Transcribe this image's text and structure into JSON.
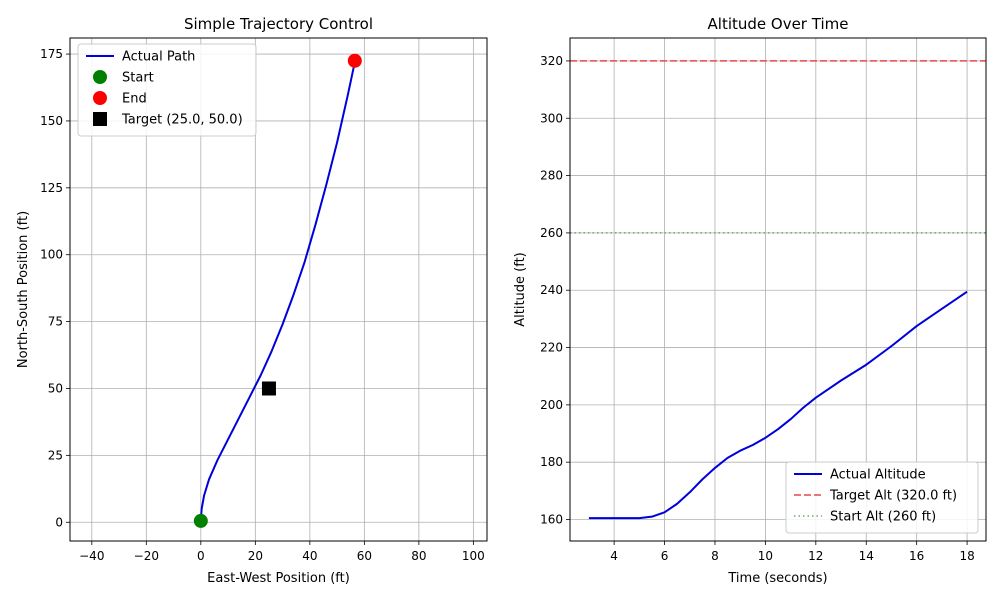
{
  "chart_data": [
    {
      "type": "line",
      "title": "Simple Trajectory Control",
      "xlabel": "East-West Position (ft)",
      "ylabel": "North-South Position (ft)",
      "xlim": [
        -48,
        105
      ],
      "ylim": [
        -7,
        181
      ],
      "xticks": [
        -40,
        -20,
        0,
        20,
        40,
        60,
        80,
        100
      ],
      "yticks": [
        0,
        25,
        50,
        75,
        100,
        125,
        150,
        175
      ],
      "grid": true,
      "legend_position": "top-left",
      "series": [
        {
          "name": "Actual Path",
          "kind": "line",
          "color": "#0000dd",
          "x": [
            0,
            0.3,
            1.2,
            3,
            6,
            10,
            14,
            18,
            22,
            26,
            30,
            34,
            38,
            42,
            46,
            50,
            54,
            56.5
          ],
          "y": [
            0.5,
            5,
            10,
            16,
            23,
            31,
            39,
            47,
            55,
            64,
            74,
            85,
            97,
            111,
            126,
            142,
            160,
            172
          ]
        },
        {
          "name": "Start",
          "kind": "point",
          "marker": "circle",
          "color": "#008000",
          "x": [
            0
          ],
          "y": [
            0.5
          ]
        },
        {
          "name": "End",
          "kind": "point",
          "marker": "circle",
          "color": "#ff0000",
          "x": [
            56.5
          ],
          "y": [
            172.5
          ]
        },
        {
          "name": "Target (25.0, 50.0)",
          "kind": "point",
          "marker": "square",
          "color": "#000000",
          "x": [
            25
          ],
          "y": [
            50
          ]
        }
      ]
    },
    {
      "type": "line",
      "title": "Altitude Over Time",
      "xlabel": "Time (seconds)",
      "ylabel": "Altitude (ft)",
      "xlim": [
        2.25,
        18.75
      ],
      "ylim": [
        152.5,
        328
      ],
      "xticks": [
        4,
        6,
        8,
        10,
        12,
        14,
        16,
        18
      ],
      "yticks": [
        160,
        180,
        200,
        220,
        240,
        260,
        280,
        300,
        320
      ],
      "grid": true,
      "legend_position": "bottom-right",
      "series": [
        {
          "name": "Actual Altitude",
          "kind": "line",
          "color": "#0000dd",
          "x": [
            3,
            4,
            5,
            5.5,
            6,
            6.5,
            7,
            7.5,
            8,
            8.5,
            9,
            9.5,
            10,
            10.5,
            11,
            11.5,
            12,
            13,
            14,
            15,
            16,
            17,
            18
          ],
          "y": [
            160.5,
            160.5,
            160.5,
            161,
            162.5,
            165.5,
            169.5,
            174,
            178,
            181.5,
            184,
            186,
            188.5,
            191.5,
            195,
            199,
            202.5,
            208.5,
            214,
            220.5,
            227.5,
            233.5,
            239.5
          ]
        },
        {
          "name": "Target Alt (320.0 ft)",
          "kind": "hline",
          "style": "dashed",
          "color": "#e8474a",
          "y": 320
        },
        {
          "name": "Start Alt (260 ft)",
          "kind": "hline",
          "style": "dotted",
          "color": "#6aa86a",
          "y": 260
        }
      ]
    }
  ]
}
